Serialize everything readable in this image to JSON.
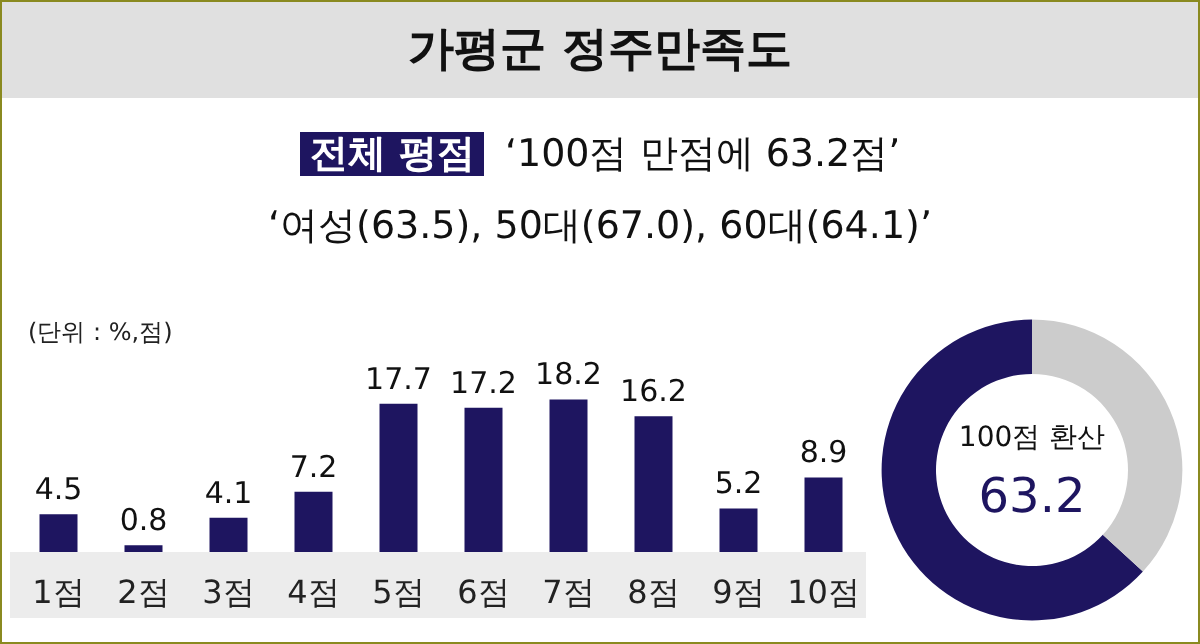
{
  "chart_data": [
    {
      "type": "bar",
      "title": "가평군 정주만족도",
      "annotations": [
        "전체 평점",
        "‘100점 만점에 63.2점’",
        "‘여성(63.5), 50대(67.0), 60대(64.1)’",
        "(단위 : %,점)"
      ],
      "categories": [
        "1점",
        "2점",
        "3점",
        "4점",
        "5점",
        "6점",
        "7점",
        "8점",
        "9점",
        "10점"
      ],
      "values": [
        4.5,
        0.8,
        4.1,
        7.2,
        17.7,
        17.2,
        18.2,
        16.2,
        5.2,
        8.9
      ],
      "color": "#1e1560",
      "data_labels": true
    },
    {
      "type": "donut",
      "title": "100점 환산",
      "categories": [
        null,
        null
      ],
      "values": [
        63.2,
        36.8
      ],
      "colors": [
        "#1e1560",
        "#cccccc"
      ],
      "value_labels": [
        "63.2",
        null
      ]
    }
  ]
}
